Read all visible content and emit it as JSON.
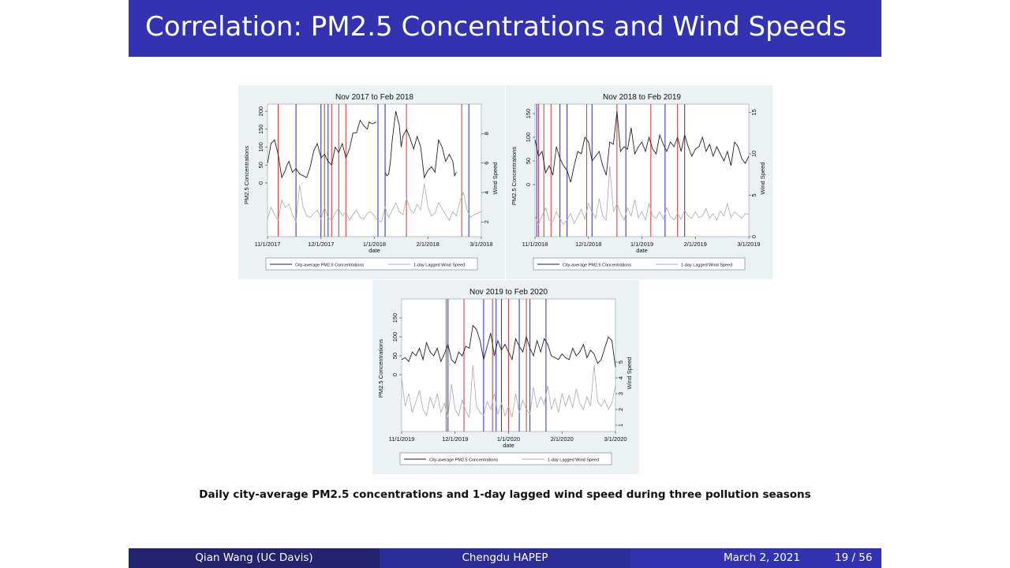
{
  "header": {
    "title": "Correlation: PM2.5 Concentrations and Wind Speeds"
  },
  "caption": "Daily city-average PM2.5 concentrations and 1-day lagged wind speed during three pollution seasons",
  "footer": {
    "author": "Qian Wang  (UC Davis)",
    "project": "Chengdu HAPEP",
    "date": "March 2, 2021",
    "page": "19 / 56"
  },
  "colors": {
    "header_bg": "#3333b2",
    "red_line": "#e04040",
    "blue_line": "#3a3ad0",
    "pm_line": "#222222",
    "wind_line": "#aaaaaa"
  },
  "chart_data": [
    {
      "type": "line",
      "title": "Nov 2017 to Feb 2018",
      "xlabel": "date",
      "ylabel": "PM2.5 Concentrations",
      "y2label": "Wind Speed",
      "xticks": [
        "11/1/2017",
        "12/1/2017",
        "1/1/2018",
        "2/1/2018",
        "3/1/2018"
      ],
      "yticks": [
        "0",
        "50",
        "100",
        "150",
        "200"
      ],
      "y2ticks": [
        "2",
        "4",
        "6",
        "8"
      ],
      "ylim": [
        -150,
        220
      ],
      "y2lim": [
        1,
        10
      ],
      "xlim": [
        0,
        120
      ],
      "legend": [
        "City-average PM2.5 Concentrations",
        "1-day Lagged Wind Speed"
      ],
      "legend_position": "bottom",
      "red_lines": [
        6,
        32,
        36,
        40,
        44,
        78,
        109
      ],
      "blue_lines": [
        16,
        30,
        34,
        62,
        66,
        113
      ],
      "series": [
        {
          "name": "City-average PM2.5 Concentrations",
          "axis": "left",
          "x": [
            0,
            2,
            4,
            5,
            6,
            8,
            10,
            11,
            12,
            14,
            16,
            18,
            20,
            22,
            24,
            26,
            28,
            30,
            32,
            34,
            36,
            38,
            40,
            42,
            44,
            46,
            48,
            50,
            52,
            54,
            56,
            57,
            59,
            61,
            63,
            64,
            65,
            66,
            67,
            68,
            69,
            70,
            72,
            74,
            75,
            76,
            78,
            80,
            82,
            84,
            86,
            88,
            90,
            92,
            94,
            96,
            98,
            100,
            102,
            104,
            105,
            106
          ],
          "y": [
            55,
            110,
            120,
            100,
            80,
            15,
            35,
            50,
            60,
            30,
            40,
            25,
            20,
            15,
            45,
            90,
            110,
            70,
            80,
            60,
            50,
            100,
            85,
            110,
            70,
            95,
            140,
            140,
            175,
            160,
            150,
            170,
            165,
            170,
            null,
            null,
            null,
            30,
            20,
            25,
            60,
            120,
            200,
            160,
            100,
            130,
            150,
            125,
            95,
            130,
            100,
            15,
            35,
            45,
            30,
            120,
            100,
            60,
            80,
            60,
            20,
            30
          ]
        },
        {
          "name": "1-day Lagged Wind Speed",
          "axis": "right",
          "x": [
            0,
            2,
            4,
            6,
            8,
            10,
            12,
            14,
            16,
            18,
            20,
            22,
            24,
            26,
            28,
            30,
            32,
            34,
            36,
            38,
            40,
            42,
            44,
            46,
            48,
            50,
            52,
            54,
            56,
            58,
            60,
            62,
            64,
            66,
            68,
            70,
            72,
            74,
            76,
            78,
            80,
            82,
            84,
            86,
            88,
            90,
            92,
            94,
            96,
            98,
            100,
            102,
            104,
            106,
            108,
            110,
            112,
            114,
            116,
            118,
            120
          ],
          "y": [
            2.2,
            3.0,
            2.5,
            2.1,
            3.5,
            3.0,
            3.2,
            2.5,
            2.0,
            4.5,
            3.0,
            2.4,
            2.3,
            2.6,
            2.8,
            2.2,
            3.0,
            2.3,
            2.1,
            2.6,
            2.9,
            2.4,
            2.7,
            2.1,
            2.5,
            2.8,
            2.3,
            2.2,
            2.6,
            2.7,
            2.4,
            2.1,
            2.0,
            3.0,
            2.3,
            2.8,
            3.3,
            2.7,
            2.5,
            3.6,
            2.9,
            2.6,
            3.2,
            2.8,
            4.6,
            3.0,
            2.4,
            2.6,
            3.3,
            2.9,
            2.5,
            2.1,
            2.7,
            2.4,
            3.4,
            4.0,
            2.8,
            2.3,
            2.5,
            2.6,
            2.7
          ]
        }
      ]
    },
    {
      "type": "line",
      "title": "Nov 2018 to Feb 2019",
      "xlabel": "date",
      "ylabel": "PM2.5 Concentrations",
      "y2label": "Wind Speed",
      "xticks": [
        "11/1/2018",
        "12/1/2018",
        "1/1/2019",
        "2/1/2019",
        "3/1/2019"
      ],
      "yticks": [
        "0",
        "50",
        "100",
        "150"
      ],
      "y2ticks": [
        "0",
        "5",
        "10",
        "15"
      ],
      "ylim": [
        -110,
        170
      ],
      "y2lim": [
        0,
        16
      ],
      "xlim": [
        0,
        120
      ],
      "legend": [
        "City-average PM2.5 Concentrations",
        "1-day Lagged Wind Speed"
      ],
      "legend_position": "bottom",
      "red_lines": [
        2,
        5,
        9,
        29,
        46,
        65,
        80
      ],
      "blue_lines": [
        1,
        14,
        18,
        32,
        51,
        73,
        84
      ],
      "series": [
        {
          "name": "City-average PM2.5 Concentrations",
          "axis": "left",
          "x": [
            0,
            2,
            4,
            6,
            8,
            10,
            12,
            14,
            16,
            18,
            20,
            22,
            24,
            26,
            28,
            30,
            32,
            34,
            36,
            38,
            40,
            42,
            44,
            46,
            48,
            50,
            52,
            54,
            56,
            58,
            60,
            62,
            64,
            66,
            68,
            70,
            72,
            74,
            76,
            78,
            80,
            82,
            84,
            86,
            88,
            90,
            92,
            94,
            96,
            98,
            100,
            102,
            104,
            106,
            108,
            110,
            112,
            114,
            116,
            118,
            120
          ],
          "y": [
            95,
            60,
            70,
            25,
            40,
            20,
            80,
            55,
            40,
            30,
            5,
            40,
            70,
            65,
            100,
            90,
            50,
            60,
            70,
            40,
            20,
            90,
            85,
            155,
            70,
            80,
            75,
            120,
            65,
            80,
            90,
            70,
            100,
            75,
            65,
            105,
            85,
            70,
            90,
            80,
            100,
            70,
            105,
            80,
            60,
            75,
            80,
            100,
            70,
            85,
            60,
            80,
            65,
            50,
            70,
            40,
            90,
            80,
            55,
            45,
            60
          ]
        },
        {
          "name": "1-day Lagged Wind Speed",
          "axis": "right",
          "x": [
            0,
            2,
            4,
            6,
            8,
            10,
            12,
            14,
            16,
            18,
            20,
            22,
            24,
            26,
            28,
            30,
            32,
            34,
            36,
            38,
            40,
            42,
            44,
            46,
            48,
            50,
            52,
            54,
            56,
            58,
            60,
            62,
            64,
            66,
            68,
            70,
            72,
            74,
            76,
            78,
            80,
            82,
            84,
            86,
            88,
            90,
            92,
            94,
            96,
            98,
            100,
            102,
            104,
            106,
            108,
            110,
            112,
            114,
            116,
            118,
            120
          ],
          "y": [
            2.5,
            1.5,
            2.5,
            3.5,
            2.0,
            1.8,
            3.0,
            2.2,
            1.5,
            2.0,
            2.8,
            1.6,
            2.4,
            3.3,
            2.1,
            4.0,
            3.0,
            2.2,
            4.6,
            2.5,
            2.0,
            8.5,
            3.0,
            4.0,
            2.8,
            2.0,
            3.5,
            2.5,
            4.5,
            2.3,
            3.0,
            2.0,
            4.0,
            2.5,
            2.2,
            3.0,
            2.1,
            3.5,
            2.4,
            2.0,
            2.8,
            2.1,
            3.2,
            2.5,
            2.2,
            3.0,
            2.3,
            2.5,
            3.4,
            2.2,
            2.8,
            2.0,
            3.1,
            2.5,
            4.0,
            2.3,
            3.0,
            2.6,
            2.2,
            2.8,
            2.7
          ]
        }
      ]
    },
    {
      "type": "line",
      "title": "Nov 2019 to Feb 2020",
      "xlabel": "date",
      "ylabel": "PM2.5 Concentrations",
      "y2label": "Wind Speed",
      "xticks": [
        "11/1/2019",
        "12/1/2019",
        "1/1/2020",
        "2/1/2020",
        "3/1/2020"
      ],
      "yticks": [
        "0",
        "50",
        "100",
        "150"
      ],
      "y2ticks": [
        "1",
        "2",
        "3",
        "4",
        "5"
      ],
      "ylim": [
        -150,
        200
      ],
      "y2lim": [
        0.6,
        9
      ],
      "xlim": [
        0,
        120
      ],
      "legend": [
        "City-average PM2.5 Concentrations",
        "1-day Lagged Wind Speed"
      ],
      "legend_position": "bottom",
      "red_lines": [
        25,
        35,
        51,
        60,
        70
      ],
      "blue_lines": [
        26,
        46,
        53,
        56,
        66,
        72,
        81
      ],
      "series": [
        {
          "name": "City-average PM2.5 Concentrations",
          "axis": "left",
          "x": [
            0,
            2,
            4,
            6,
            8,
            10,
            12,
            14,
            16,
            18,
            20,
            22,
            24,
            26,
            28,
            30,
            32,
            34,
            36,
            38,
            40,
            42,
            44,
            46,
            48,
            50,
            52,
            54,
            56,
            58,
            60,
            62,
            64,
            66,
            68,
            70,
            72,
            74,
            76,
            78,
            80,
            82,
            84,
            86,
            88,
            90,
            92,
            94,
            96,
            98,
            100,
            102,
            104,
            106,
            108,
            110,
            112,
            114,
            116,
            118,
            120
          ],
          "y": [
            40,
            45,
            35,
            60,
            50,
            70,
            40,
            85,
            60,
            50,
            70,
            35,
            55,
            80,
            40,
            30,
            60,
            50,
            75,
            70,
            130,
            120,
            90,
            40,
            75,
            110,
            50,
            90,
            65,
            80,
            60,
            40,
            95,
            75,
            60,
            100,
            70,
            50,
            90,
            60,
            95,
            80,
            50,
            45,
            40,
            55,
            45,
            40,
            70,
            50,
            60,
            80,
            45,
            65,
            55,
            30,
            40,
            70,
            100,
            90,
            20
          ]
        },
        {
          "name": "1-day Lagged Wind Speed",
          "axis": "right",
          "x": [
            0,
            2,
            4,
            6,
            8,
            10,
            12,
            14,
            16,
            18,
            20,
            22,
            24,
            26,
            28,
            30,
            32,
            34,
            36,
            38,
            40,
            42,
            44,
            46,
            48,
            50,
            52,
            54,
            56,
            58,
            60,
            62,
            64,
            66,
            68,
            70,
            72,
            74,
            76,
            78,
            80,
            82,
            84,
            86,
            88,
            90,
            92,
            94,
            96,
            98,
            100,
            102,
            104,
            106,
            108,
            110,
            112,
            114,
            116,
            118,
            120
          ],
          "y": [
            4.0,
            2.2,
            3.0,
            1.8,
            2.5,
            3.2,
            2.0,
            1.6,
            2.8,
            2.1,
            3.0,
            1.8,
            2.4,
            1.5,
            3.6,
            2.0,
            1.6,
            2.6,
            1.9,
            1.5,
            4.8,
            2.2,
            1.8,
            1.6,
            2.5,
            2.0,
            3.0,
            1.7,
            2.4,
            1.6,
            2.2,
            1.5,
            3.0,
            1.8,
            2.6,
            2.0,
            1.7,
            3.4,
            2.1,
            2.8,
            2.3,
            3.5,
            2.0,
            2.7,
            1.8,
            3.0,
            2.2,
            2.9,
            2.1,
            3.3,
            2.4,
            2.0,
            2.8,
            2.2,
            4.8,
            2.5,
            2.2,
            2.6,
            2.0,
            2.4,
            3.5
          ]
        }
      ]
    }
  ]
}
